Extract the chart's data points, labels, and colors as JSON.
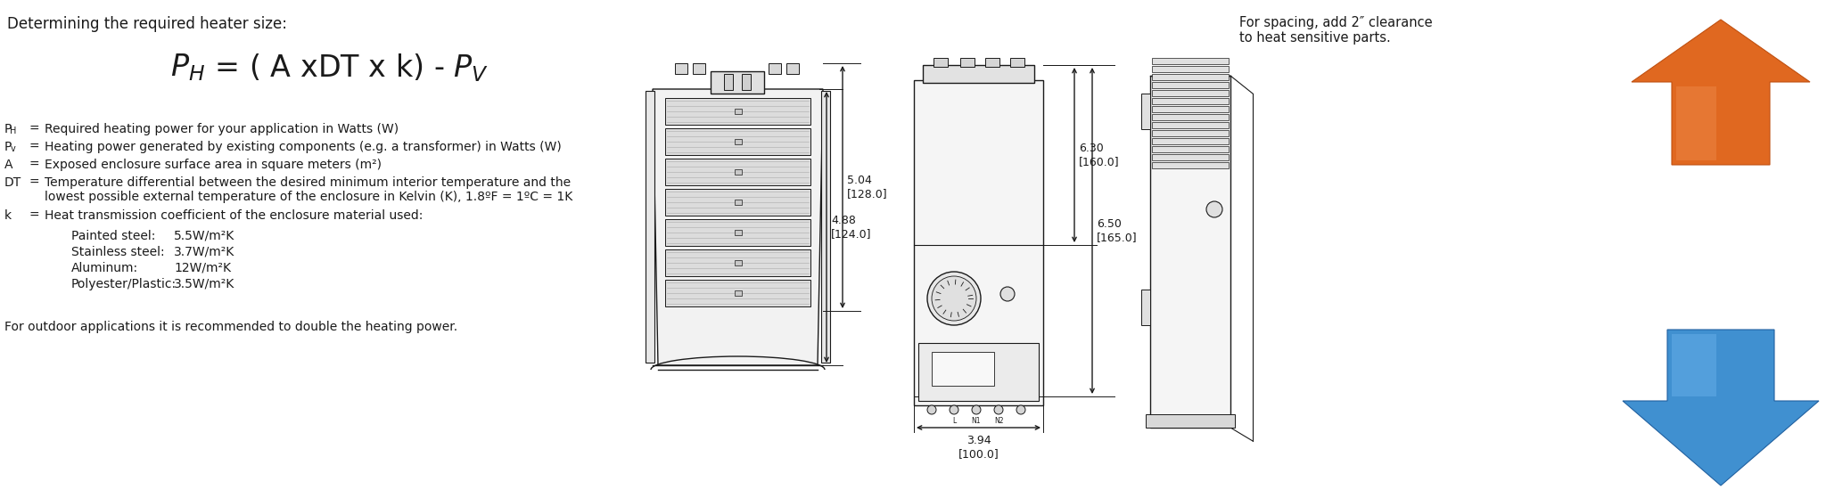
{
  "bg_color": "#ffffff",
  "black": "#1a1a1a",
  "title": "Determining the required heater size:",
  "formula_ph": "P",
  "formula_h_sub": "H",
  "formula_rest": " = ( A xDT x k) - P",
  "formula_v_sub": "V",
  "def_rows": [
    {
      "sym": "P",
      "sub": "H",
      "eq": "=",
      "text": "Required heating power for your application in Watts (W)"
    },
    {
      "sym": "P",
      "sub": "v",
      "eq": "=",
      "text": "Heating power generated by existing components (e.g. a transformer) in Watts (W)"
    },
    {
      "sym": "A",
      "sub": "",
      "eq": "=",
      "text": "Exposed enclosure surface area in square meters (m²)"
    },
    {
      "sym": "DT",
      "sub": "",
      "eq": "=",
      "text": "Temperature differential between the desired minimum interior temperature and the\nlowest possible external temperature of the enclosure in Kelvin (K), 1.8ºF = 1ºC = 1K"
    },
    {
      "sym": "k",
      "sub": "",
      "eq": "=",
      "text": "Heat transmission coefficient of the enclosure material used:"
    }
  ],
  "k_items": [
    [
      "Painted steel:",
      "5.5W/m²K"
    ],
    [
      "Stainless steel:",
      "3.7W/m²K"
    ],
    [
      "Aluminum:",
      "12W/m²K"
    ],
    [
      "Polyester/Plastic:",
      "3.5W/m²K"
    ]
  ],
  "footer": "For outdoor applications it is recommended to double the heating power.",
  "spacing_note": "For spacing, add 2″ clearance\nto heat sensitive parts.",
  "dim_504": "5.04\n[128.0]",
  "dim_488": "4.88\n[124.0]",
  "dim_394": "3.94\n[100.0]",
  "dim_630": "6.30\n[160.0]",
  "dim_650": "6.50\n[165.0]"
}
